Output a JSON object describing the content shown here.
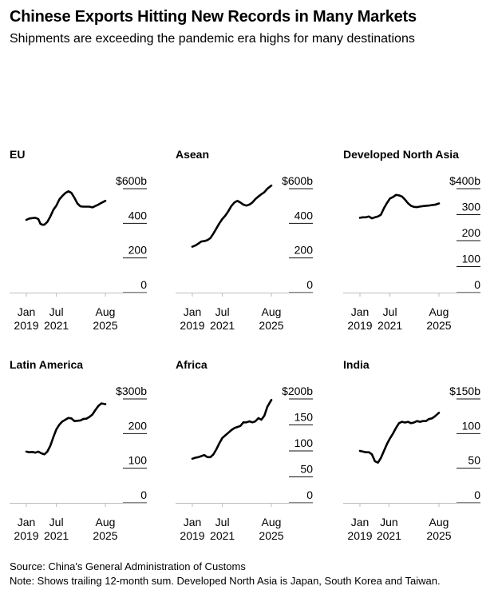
{
  "title": "Chinese Exports Hitting New Records in Many Markets",
  "subtitle": "Shipments are exceeding the pandemic era highs for many destinations",
  "source": "Source: China's General Administration of Customs",
  "note": "Note: Shows trailing 12-month sum. Developed North Asia is Japan, South Korea and Taiwan.",
  "chart_data": [
    {
      "type": "line",
      "title": "EU",
      "unit": "billion USD",
      "ylim": [
        0,
        600
      ],
      "yticks": [
        {
          "v": 600,
          "l": "$600b"
        },
        {
          "v": 400,
          "l": "400"
        },
        {
          "v": 200,
          "l": "200"
        },
        {
          "v": 0,
          "l": "0"
        }
      ],
      "xticks": [
        {
          "t": 2019.0,
          "l1": "Jan",
          "l2": "2019"
        },
        {
          "t": 2021.5,
          "l1": "Jul",
          "l2": "2021"
        },
        {
          "t": 2025.58,
          "l1": "Aug",
          "l2": "2025"
        }
      ],
      "series": [
        {
          "name": "EU",
          "x": [
            2019.0,
            2019.25,
            2019.5,
            2019.75,
            2020.0,
            2020.17,
            2020.33,
            2020.5,
            2020.75,
            2021.0,
            2021.25,
            2021.5,
            2021.75,
            2022.0,
            2022.25,
            2022.5,
            2022.75,
            2023.0,
            2023.25,
            2023.5,
            2023.75,
            2024.0,
            2024.25,
            2024.5,
            2024.75,
            2025.0,
            2025.25,
            2025.58
          ],
          "y": [
            420,
            428,
            430,
            432,
            425,
            398,
            392,
            392,
            408,
            440,
            478,
            502,
            538,
            558,
            575,
            585,
            576,
            548,
            515,
            498,
            496,
            496,
            496,
            492,
            500,
            508,
            518,
            530
          ]
        }
      ]
    },
    {
      "type": "line",
      "title": "Asean",
      "unit": "billion USD",
      "ylim": [
        0,
        600
      ],
      "yticks": [
        {
          "v": 600,
          "l": "$600b"
        },
        {
          "v": 400,
          "l": "400"
        },
        {
          "v": 200,
          "l": "200"
        },
        {
          "v": 0,
          "l": "0"
        }
      ],
      "xticks": [
        {
          "t": 2019.0,
          "l1": "Jan",
          "l2": "2019"
        },
        {
          "t": 2021.5,
          "l1": "Jul",
          "l2": "2021"
        },
        {
          "t": 2025.58,
          "l1": "Aug",
          "l2": "2025"
        }
      ],
      "series": [
        {
          "name": "Asean",
          "x": [
            2019.0,
            2019.25,
            2019.5,
            2019.75,
            2020.0,
            2020.25,
            2020.5,
            2020.75,
            2021.0,
            2021.25,
            2021.5,
            2021.75,
            2022.0,
            2022.25,
            2022.5,
            2022.75,
            2023.0,
            2023.25,
            2023.5,
            2023.75,
            2024.0,
            2024.25,
            2024.5,
            2024.75,
            2025.0,
            2025.25,
            2025.58
          ],
          "y": [
            265,
            272,
            283,
            295,
            297,
            303,
            315,
            340,
            370,
            400,
            425,
            445,
            470,
            500,
            520,
            530,
            520,
            508,
            502,
            508,
            520,
            540,
            555,
            568,
            580,
            600,
            618
          ]
        }
      ]
    },
    {
      "type": "line",
      "title": "Developed North Asia",
      "unit": "billion USD",
      "ylim": [
        0,
        400
      ],
      "yticks": [
        {
          "v": 400,
          "l": "$400b"
        },
        {
          "v": 300,
          "l": "300"
        },
        {
          "v": 200,
          "l": "200"
        },
        {
          "v": 100,
          "l": "100"
        },
        {
          "v": 0,
          "l": "0"
        }
      ],
      "xticks": [
        {
          "t": 2019.0,
          "l1": "Jan",
          "l2": "2019"
        },
        {
          "t": 2021.5,
          "l1": "Jul",
          "l2": "2021"
        },
        {
          "t": 2025.58,
          "l1": "Aug",
          "l2": "2025"
        }
      ],
      "series": [
        {
          "name": "Developed North Asia",
          "x": [
            2019.0,
            2019.25,
            2019.5,
            2019.75,
            2020.0,
            2020.25,
            2020.5,
            2020.75,
            2021.0,
            2021.25,
            2021.5,
            2021.75,
            2022.0,
            2022.25,
            2022.5,
            2022.75,
            2023.0,
            2023.25,
            2023.5,
            2023.75,
            2024.0,
            2024.25,
            2024.5,
            2024.75,
            2025.0,
            2025.25,
            2025.58
          ],
          "y": [
            288,
            290,
            290,
            293,
            286,
            290,
            293,
            300,
            325,
            345,
            362,
            368,
            376,
            374,
            370,
            358,
            344,
            334,
            330,
            329,
            331,
            333,
            334,
            335,
            337,
            338,
            343
          ]
        }
      ]
    },
    {
      "type": "line",
      "title": "Latin America",
      "unit": "billion USD",
      "ylim": [
        0,
        300
      ],
      "yticks": [
        {
          "v": 300,
          "l": "$300b"
        },
        {
          "v": 200,
          "l": "200"
        },
        {
          "v": 100,
          "l": "100"
        },
        {
          "v": 0,
          "l": "0"
        }
      ],
      "xticks": [
        {
          "t": 2019.0,
          "l1": "Jan",
          "l2": "2019"
        },
        {
          "t": 2021.5,
          "l1": "Jul",
          "l2": "2021"
        },
        {
          "t": 2025.58,
          "l1": "Aug",
          "l2": "2025"
        }
      ],
      "series": [
        {
          "name": "Latin America",
          "x": [
            2019.0,
            2019.25,
            2019.5,
            2019.75,
            2020.0,
            2020.25,
            2020.5,
            2020.75,
            2021.0,
            2021.25,
            2021.5,
            2021.75,
            2022.0,
            2022.25,
            2022.5,
            2022.75,
            2023.0,
            2023.25,
            2023.5,
            2023.75,
            2024.0,
            2024.25,
            2024.5,
            2024.75,
            2025.0,
            2025.25,
            2025.58
          ],
          "y": [
            148,
            146,
            147,
            145,
            148,
            143,
            140,
            148,
            165,
            190,
            212,
            226,
            235,
            240,
            245,
            244,
            236,
            237,
            238,
            242,
            243,
            248,
            255,
            268,
            280,
            287,
            285
          ]
        }
      ]
    },
    {
      "type": "line",
      "title": "Africa",
      "unit": "billion USD",
      "ylim": [
        0,
        200
      ],
      "yticks": [
        {
          "v": 200,
          "l": "$200b"
        },
        {
          "v": 150,
          "l": "150"
        },
        {
          "v": 100,
          "l": "100"
        },
        {
          "v": 50,
          "l": "50"
        },
        {
          "v": 0,
          "l": "0"
        }
      ],
      "xticks": [
        {
          "t": 2019.0,
          "l1": "Jan",
          "l2": "2019"
        },
        {
          "t": 2021.5,
          "l1": "Jul",
          "l2": "2021"
        },
        {
          "t": 2025.58,
          "l1": "Aug",
          "l2": "2025"
        }
      ],
      "series": [
        {
          "name": "Africa",
          "x": [
            2019.0,
            2019.25,
            2019.5,
            2019.75,
            2020.0,
            2020.25,
            2020.5,
            2020.75,
            2021.0,
            2021.25,
            2021.5,
            2021.75,
            2022.0,
            2022.25,
            2022.5,
            2022.75,
            2023.0,
            2023.25,
            2023.5,
            2023.75,
            2024.0,
            2024.25,
            2024.5,
            2024.75,
            2025.0,
            2025.25,
            2025.58
          ],
          "y": [
            85,
            87,
            88,
            90,
            92,
            88,
            88,
            93,
            103,
            115,
            125,
            130,
            135,
            140,
            144,
            146,
            148,
            155,
            155,
            157,
            155,
            157,
            163,
            160,
            168,
            185,
            198
          ]
        }
      ]
    },
    {
      "type": "line",
      "title": "India",
      "unit": "billion USD",
      "ylim": [
        0,
        150
      ],
      "yticks": [
        {
          "v": 150,
          "l": "$150b"
        },
        {
          "v": 100,
          "l": "100"
        },
        {
          "v": 50,
          "l": "50"
        },
        {
          "v": 0,
          "l": "0"
        }
      ],
      "xticks": [
        {
          "t": 2019.0,
          "l1": "Jan",
          "l2": "2019"
        },
        {
          "t": 2021.42,
          "l1": "Jun",
          "l2": "2021"
        },
        {
          "t": 2025.58,
          "l1": "Aug",
          "l2": "2025"
        }
      ],
      "series": [
        {
          "name": "India",
          "x": [
            2019.0,
            2019.25,
            2019.5,
            2019.75,
            2020.0,
            2020.25,
            2020.5,
            2020.75,
            2021.0,
            2021.25,
            2021.5,
            2021.75,
            2022.0,
            2022.25,
            2022.5,
            2022.75,
            2023.0,
            2023.25,
            2023.5,
            2023.75,
            2024.0,
            2024.25,
            2024.5,
            2024.75,
            2025.0,
            2025.25,
            2025.58
          ],
          "y": [
            75,
            74,
            73,
            73,
            70,
            60,
            58,
            65,
            75,
            85,
            93,
            100,
            108,
            115,
            117,
            116,
            117,
            115,
            116,
            118,
            117,
            118,
            118,
            121,
            122,
            125,
            130
          ]
        }
      ]
    }
  ]
}
